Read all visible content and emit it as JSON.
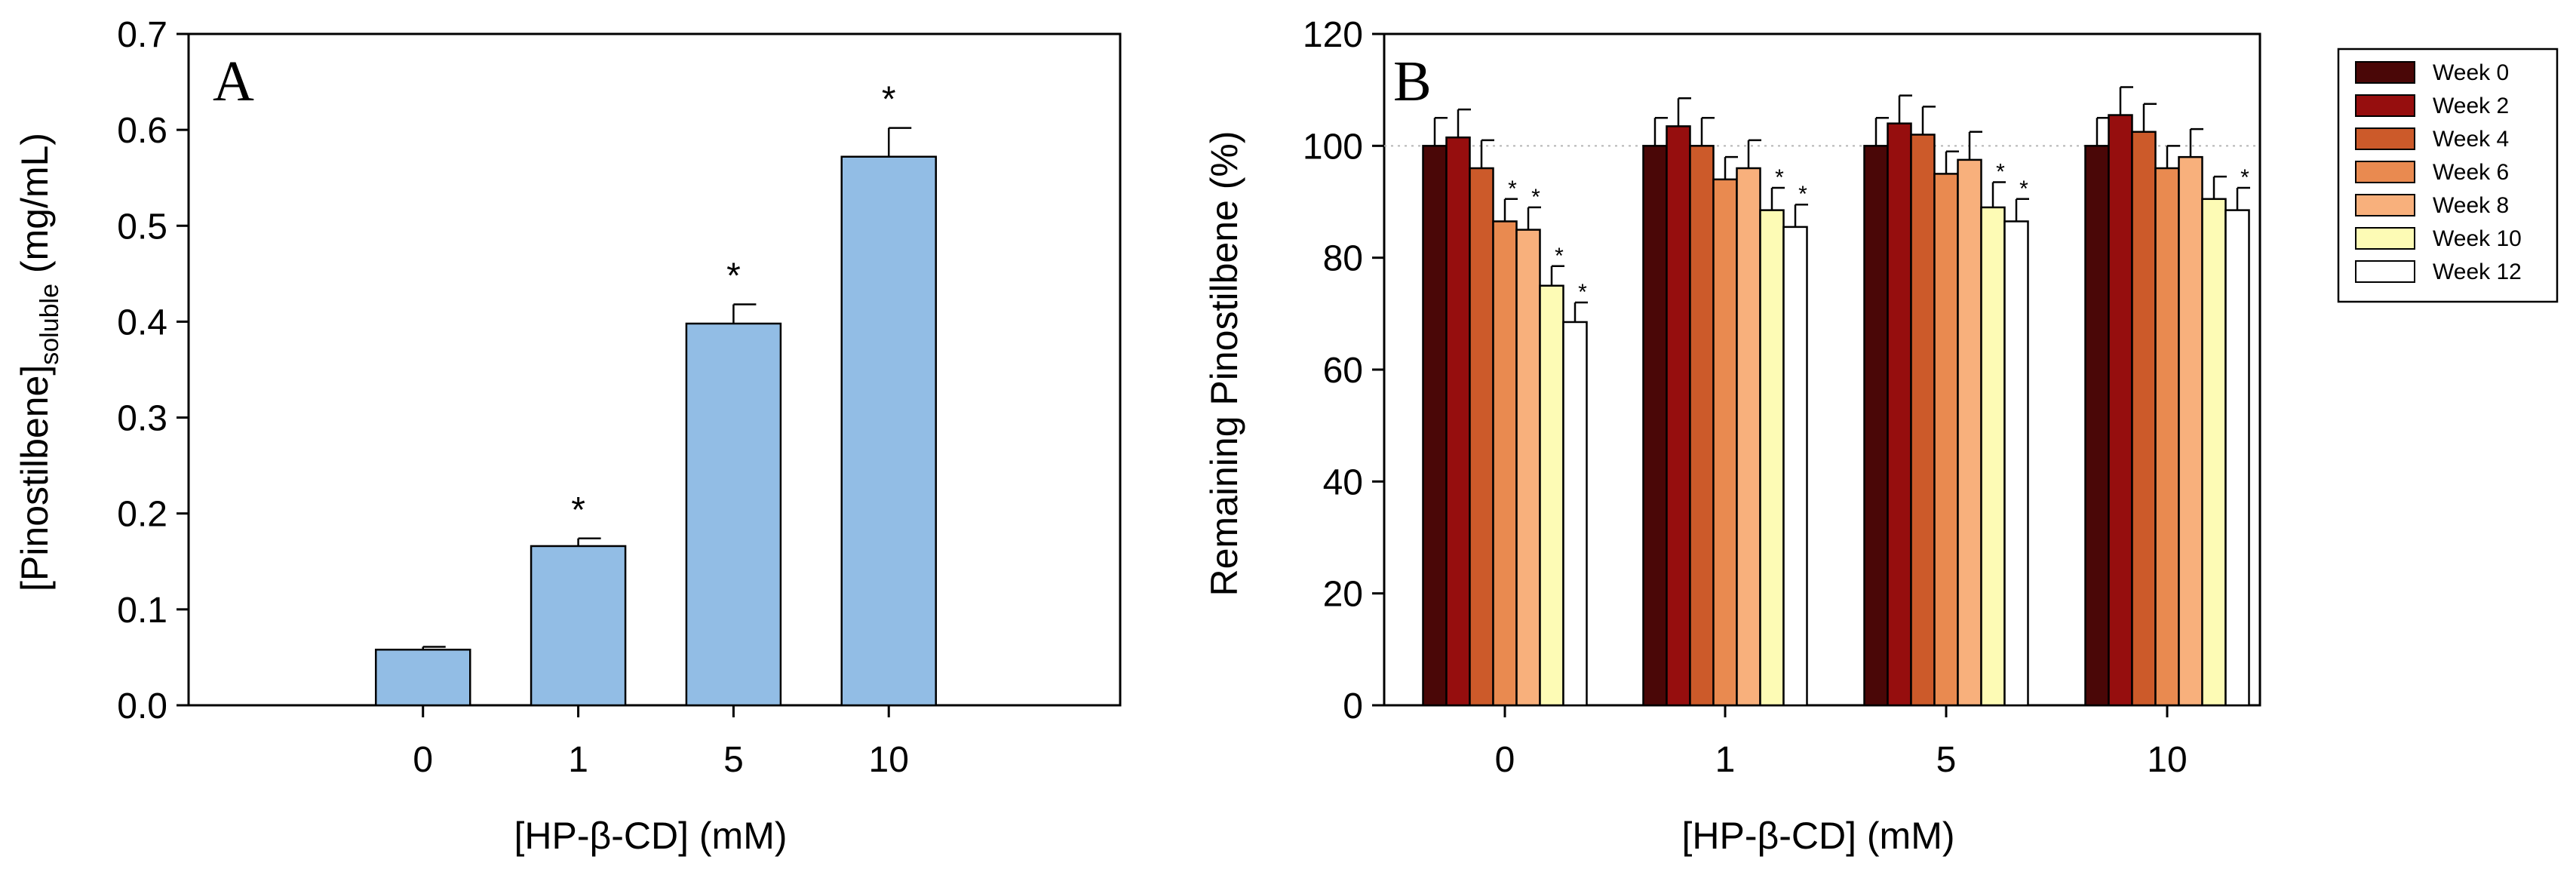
{
  "chart_data": [
    {
      "panel": "A",
      "type": "bar",
      "panel_label": "A",
      "categories": [
        "0",
        "1",
        "5",
        "10"
      ],
      "values": [
        0.058,
        0.166,
        0.398,
        0.572
      ],
      "errors": [
        0.003,
        0.008,
        0.02,
        0.03
      ],
      "significance": [
        "",
        "*",
        "*",
        "*"
      ],
      "ylabel_main": "[Pinostilbene]",
      "ylabel_sub": "soluble",
      "ylabel_unit": " (mg/mL)",
      "xlabel": "[HP-β-CD] (mM)",
      "ylim": [
        0,
        0.7
      ],
      "yticks": [
        "0.0",
        "0.1",
        "0.2",
        "0.3",
        "0.4",
        "0.5",
        "0.6",
        "0.7"
      ],
      "bar_color": "#92bde5",
      "grid": false
    },
    {
      "panel": "B",
      "type": "bar",
      "panel_label": "B",
      "categories": [
        "0",
        "1",
        "5",
        "10"
      ],
      "series": [
        {
          "name": "Week 0",
          "color": "#4a0707",
          "values": [
            100,
            100,
            100,
            100
          ],
          "errors": [
            5,
            5,
            5,
            5
          ],
          "significance": [
            "",
            "",
            "",
            ""
          ]
        },
        {
          "name": "Week 2",
          "color": "#960e0e",
          "values": [
            101.5,
            103.5,
            104,
            105.5
          ],
          "errors": [
            5,
            5,
            5,
            5
          ],
          "significance": [
            "",
            "",
            "",
            ""
          ]
        },
        {
          "name": "Week 4",
          "color": "#cc5a2a",
          "values": [
            96,
            100,
            102,
            102.5
          ],
          "errors": [
            5,
            5,
            5,
            5
          ],
          "significance": [
            "",
            "",
            "",
            ""
          ]
        },
        {
          "name": "Week 6",
          "color": "#e98a50",
          "values": [
            86.5,
            94,
            95,
            96
          ],
          "errors": [
            4,
            4,
            4,
            4
          ],
          "significance": [
            "*",
            "",
            "",
            ""
          ]
        },
        {
          "name": "Week 8",
          "color": "#f8b07c",
          "values": [
            85,
            96,
            97.5,
            98
          ],
          "errors": [
            4,
            5,
            5,
            5
          ],
          "significance": [
            "*",
            "",
            "",
            ""
          ]
        },
        {
          "name": "Week 10",
          "color": "#fdfbb5",
          "values": [
            75,
            88.5,
            89,
            90.5
          ],
          "errors": [
            3.5,
            4,
            4.5,
            4
          ],
          "significance": [
            "*",
            "*",
            "*",
            ""
          ]
        },
        {
          "name": "Week 12",
          "color": "#ffffff",
          "values": [
            68.5,
            85.5,
            86.5,
            88.5
          ],
          "errors": [
            3.5,
            4,
            4,
            4
          ],
          "significance": [
            "*",
            "*",
            "*",
            "*"
          ]
        }
      ],
      "ylabel": "Remaining Pinostilbene (%)",
      "xlabel": "[HP-β-CD] (mM)",
      "ylim": [
        0,
        120
      ],
      "yticks": [
        "0",
        "20",
        "40",
        "60",
        "80",
        "100",
        "120"
      ],
      "reference_line": 100,
      "legend_position": "outside-right",
      "grid": false
    }
  ]
}
